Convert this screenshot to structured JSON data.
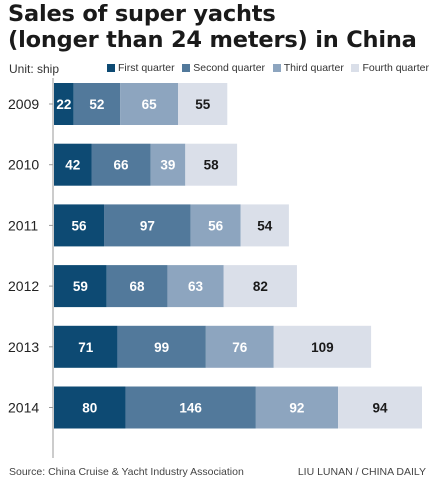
{
  "chart_data": {
    "type": "bar",
    "orientation": "horizontal",
    "stacked": true,
    "title_lines": [
      "Sales of super yachts",
      "(longer than 24 meters) in China"
    ],
    "unit_label": "Unit: ship",
    "categories": [
      "2009",
      "2010",
      "2011",
      "2012",
      "2013",
      "2014"
    ],
    "series": [
      {
        "name": "First quarter",
        "color": "#0d4a73",
        "values": [
          22,
          42,
          56,
          59,
          71,
          80
        ]
      },
      {
        "name": "Second quarter",
        "color": "#52799b",
        "values": [
          52,
          66,
          97,
          68,
          99,
          146
        ]
      },
      {
        "name": "Third quarter",
        "color": "#8da5bf",
        "values": [
          65,
          39,
          56,
          63,
          76,
          92
        ]
      },
      {
        "name": "Fourth quarter",
        "color": "#dadfe9",
        "values": [
          55,
          58,
          54,
          82,
          109,
          94
        ]
      }
    ],
    "legend_position": "top-right",
    "grid": false
  },
  "footer": {
    "source": "Source: China Cruise & Yacht Industry Association",
    "credit": "LIU LUNAN / CHINA DAILY"
  },
  "colors": {
    "label_dark_bg": "#ffffff",
    "label_light_bg": "#1a1a1a"
  }
}
